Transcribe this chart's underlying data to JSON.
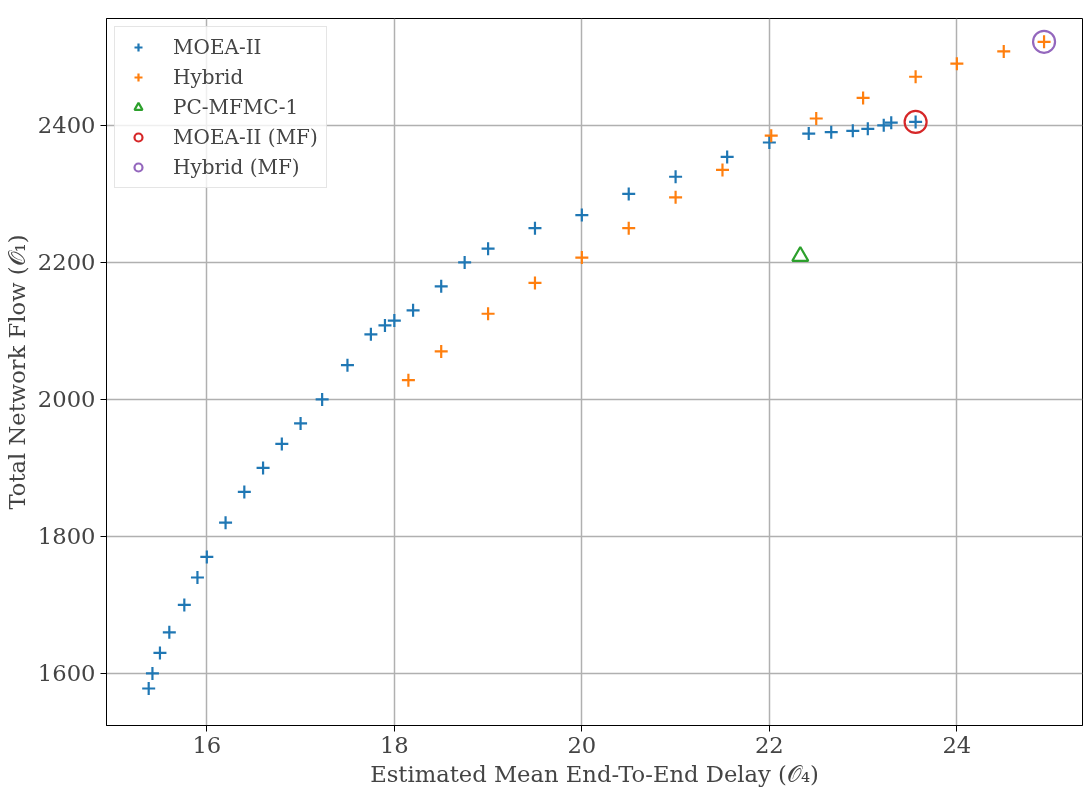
{
  "chart_data": {
    "type": "scatter",
    "xlabel": "Estimated Mean End-To-End Delay (𝒪₄)",
    "ylabel": "Total Network Flow (𝒪₁)",
    "xlim": [
      14.93,
      25.34
    ],
    "ylim": [
      1524,
      2556
    ],
    "xticks": [
      16,
      18,
      20,
      22,
      24
    ],
    "yticks": [
      1600,
      1800,
      2000,
      2200,
      2400
    ],
    "grid": true,
    "legend": "top left",
    "series": [
      {
        "name": "MOEA-II",
        "color": "#1f77b4",
        "marker": "cross",
        "x": [
          15.38,
          15.42,
          15.5,
          15.6,
          15.76,
          15.9,
          16.0,
          16.2,
          16.4,
          16.6,
          16.8,
          17.0,
          17.23,
          17.5,
          17.75,
          17.9,
          18.0,
          18.2,
          18.5,
          18.75,
          19.0,
          19.5,
          20.0,
          20.5,
          21.0,
          21.55,
          22.0,
          22.42,
          22.66,
          22.89,
          23.05,
          23.22,
          23.3,
          23.56
        ],
        "values": [
          1578,
          1600,
          1630,
          1660,
          1700,
          1740,
          1770,
          1820,
          1865,
          1900,
          1935,
          1965,
          2000,
          2050,
          2095,
          2108,
          2115,
          2130,
          2165,
          2200,
          2220,
          2250,
          2269,
          2300,
          2325,
          2354,
          2375,
          2388,
          2390,
          2392,
          2395,
          2400,
          2404,
          2405
        ]
      },
      {
        "name": "Hybrid",
        "color": "#ff7f0e",
        "marker": "cross",
        "x": [
          18.15,
          18.5,
          19.0,
          19.5,
          20.0,
          20.5,
          21.0,
          21.5,
          22.02,
          22.5,
          23.0,
          23.56,
          24.0,
          24.5,
          24.93
        ],
        "values": [
          2028,
          2070,
          2125,
          2170,
          2207,
          2250,
          2295,
          2335,
          2385,
          2410,
          2440,
          2471,
          2490,
          2508,
          2522
        ]
      },
      {
        "name": "PC-MFMC-1",
        "color": "#2ca02c",
        "marker": "triangle",
        "x": [
          22.33
        ],
        "values": [
          2209
        ]
      },
      {
        "name": "MOEA-II (MF)",
        "color": "#d62728",
        "marker": "circle",
        "x": [
          23.56
        ],
        "values": [
          2405
        ]
      },
      {
        "name": "Hybrid (MF)",
        "color": "#9467bd",
        "marker": "circle",
        "x": [
          24.93
        ],
        "values": [
          2522
        ]
      }
    ]
  }
}
